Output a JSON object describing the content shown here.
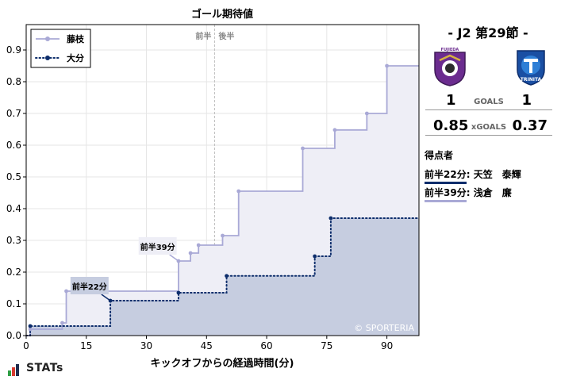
{
  "chart_data": {
    "type": "line",
    "title": "ゴール期待値",
    "xlabel": "キックオフからの経過時間(分)",
    "ylabel": "",
    "xlim": [
      0,
      98
    ],
    "ylim": [
      0,
      0.98
    ],
    "xticks": [
      0,
      15,
      30,
      45,
      60,
      75,
      90
    ],
    "xtick_labels": [
      "0",
      "15",
      "30",
      "45",
      "60",
      "75",
      "90"
    ],
    "yticks": [
      0,
      0.1,
      0.2,
      0.3,
      0.4,
      0.5,
      0.6,
      0.7,
      0.8,
      0.9
    ],
    "ytick_labels": [
      "0.0",
      "0.1",
      "0.2",
      "0.3",
      "0.4",
      "0.5",
      "0.6",
      "0.7",
      "0.8",
      "0.9"
    ],
    "halftime_x": 47,
    "halftime_labels": [
      "前半",
      "後半"
    ],
    "watermark": "© SPORTERIA",
    "grid": true,
    "legend_position": "top-left",
    "series": [
      {
        "name": "藤枝",
        "color": "#a9a9d6",
        "fill": "#eeeef6",
        "style": "solid",
        "events": [
          [
            1,
            0.02
          ],
          [
            9,
            0.04
          ],
          [
            10,
            0.14
          ],
          [
            38,
            0.235
          ],
          [
            41,
            0.26
          ],
          [
            43,
            0.285
          ],
          [
            49,
            0.315
          ],
          [
            53,
            0.455
          ],
          [
            69,
            0.59
          ],
          [
            77,
            0.648
          ],
          [
            85,
            0.7
          ],
          [
            90,
            0.85
          ]
        ],
        "end": [
          98,
          0.85
        ]
      },
      {
        "name": "大分",
        "color": "#0d2d6b",
        "fill": "#c6cde0",
        "style": "dotted",
        "events": [
          [
            1,
            0.03
          ],
          [
            21,
            0.11
          ],
          [
            38,
            0.135
          ],
          [
            50,
            0.188
          ],
          [
            72,
            0.25
          ],
          [
            76,
            0.37
          ]
        ],
        "end": [
          98,
          0.37
        ]
      }
    ],
    "annotations": [
      {
        "text": "前半22分",
        "series": 1,
        "point": [
          21,
          0.11
        ],
        "label_at": [
          16,
          0.155
        ]
      },
      {
        "text": "前半39分",
        "series": 0,
        "point": [
          38,
          0.235
        ],
        "label_at": [
          33,
          0.28
        ]
      }
    ]
  },
  "match": {
    "title": "- J2 第29節 -",
    "home_goals": "1",
    "away_goals": "1",
    "goals_label": "GOALS",
    "home_xg": "0.85",
    "away_xg": "0.37",
    "xg_label": "xGOALS",
    "scorers_title": "得点者",
    "scorers": [
      {
        "time": "前半22分",
        "name": "天笠　泰輝",
        "color": "#0d2d6b"
      },
      {
        "time": "前半39分",
        "name": "浅倉　廉",
        "color": "#a9a9d6"
      }
    ],
    "home_crest_text": "FUJIEDA",
    "away_crest_text": "TRINITA"
  },
  "brand": {
    "text": "STATs",
    "bar_colors": [
      "#2e9e44",
      "#d63b2f",
      "#1f2d4f"
    ]
  }
}
